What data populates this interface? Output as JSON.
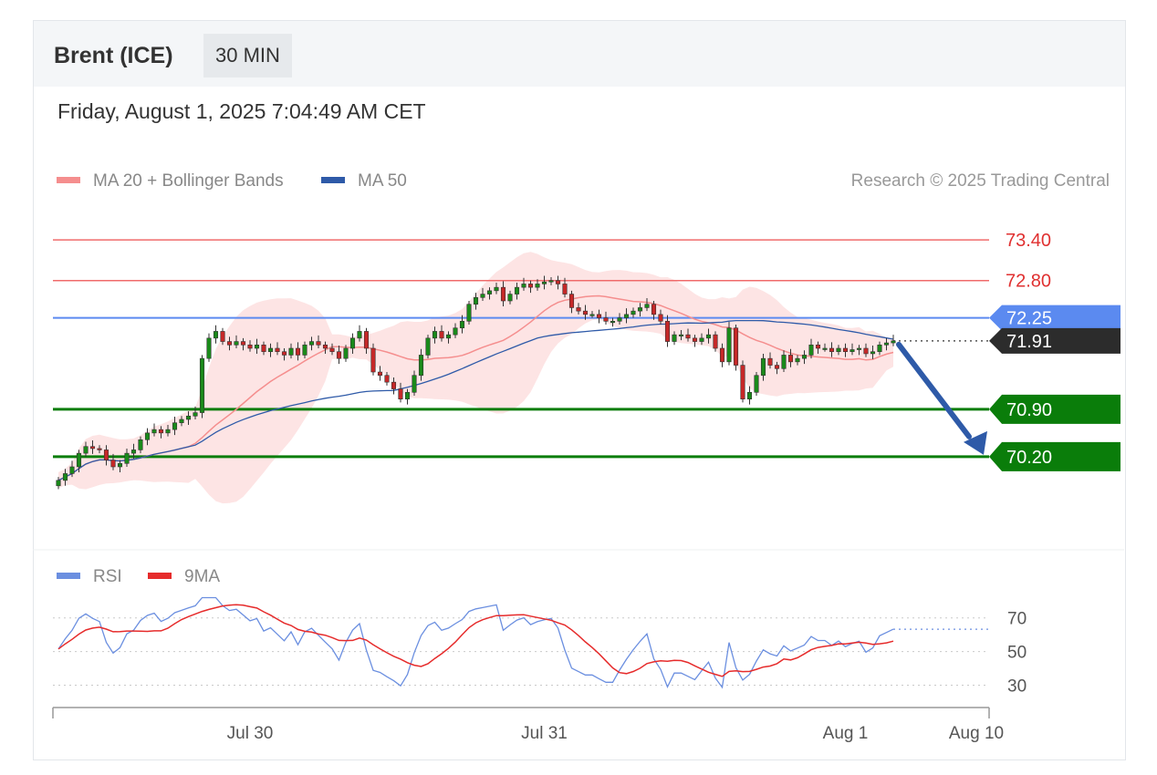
{
  "header": {
    "instrument": "Brent (ICE)",
    "timeframe": "30 MIN",
    "datetime": "Friday, August 1, 2025 7:04:49 AM CET"
  },
  "colors": {
    "ma20": "#f58e8e",
    "bollinger_fill": "#fde1e1",
    "ma50": "#2e5aa8",
    "resistance": "#f06b6b",
    "pivot": "#5b8af0",
    "support": "#0a7d0a",
    "current": "#2c2c2c",
    "rsi": "#6b8fe0",
    "rsi_ma": "#e62b2b",
    "bull_candle": "#1a8a1a",
    "bear_candle": "#c62828",
    "arrow": "#2e5aa8"
  },
  "chart_data": [
    {
      "type": "line",
      "name": "price",
      "legend": [
        {
          "label": "MA 20 + Bollinger Bands",
          "color": "#f58e8e"
        },
        {
          "label": "MA 50",
          "color": "#2e5aa8"
        }
      ],
      "credit": "Research © 2025 Trading Central",
      "ylim": [
        69.0,
        73.9
      ],
      "xlim": [
        0,
        136
      ],
      "x_ticks": [
        {
          "x": 28,
          "label": "Jul 30"
        },
        {
          "x": 71,
          "label": "Jul 31"
        },
        {
          "x": 115,
          "label": "Aug 1"
        },
        {
          "x": 134,
          "label": "Aug 10"
        }
      ],
      "levels": [
        {
          "value": 73.4,
          "label": "73.40",
          "kind": "resistance"
        },
        {
          "value": 72.8,
          "label": "72.80",
          "kind": "resistance"
        },
        {
          "value": 72.25,
          "label": "72.25",
          "kind": "pivot"
        },
        {
          "value": 71.91,
          "label": "71.91",
          "kind": "current"
        },
        {
          "value": 70.9,
          "label": "70.90",
          "kind": "support"
        },
        {
          "value": 70.2,
          "label": "70.20",
          "kind": "support"
        }
      ],
      "close": [
        69.85,
        69.95,
        70.05,
        70.25,
        70.35,
        70.32,
        70.3,
        70.15,
        70.05,
        70.1,
        70.25,
        70.3,
        70.45,
        70.55,
        70.6,
        70.55,
        70.6,
        70.7,
        70.75,
        70.8,
        70.85,
        71.65,
        71.95,
        72.05,
        71.9,
        71.85,
        71.9,
        71.85,
        71.8,
        71.85,
        71.75,
        71.8,
        71.75,
        71.7,
        71.8,
        71.7,
        71.85,
        71.9,
        71.85,
        71.8,
        71.75,
        71.65,
        71.8,
        71.95,
        72.05,
        71.8,
        71.45,
        71.4,
        71.3,
        71.2,
        71.05,
        71.15,
        71.4,
        71.7,
        71.95,
        72.05,
        71.95,
        72.0,
        72.1,
        72.2,
        72.45,
        72.55,
        72.6,
        72.65,
        72.7,
        72.5,
        72.6,
        72.7,
        72.75,
        72.7,
        72.75,
        72.78,
        72.8,
        72.75,
        72.6,
        72.4,
        72.35,
        72.3,
        72.3,
        72.25,
        72.2,
        72.2,
        72.25,
        72.3,
        72.35,
        72.4,
        72.45,
        72.3,
        72.2,
        71.9,
        72.0,
        72.0,
        71.95,
        71.9,
        71.95,
        72.0,
        71.8,
        71.6,
        72.1,
        71.55,
        71.05,
        71.15,
        71.4,
        71.65,
        71.55,
        71.5,
        71.7,
        71.6,
        71.65,
        71.7,
        71.85,
        71.8,
        71.8,
        71.75,
        71.8,
        71.75,
        71.78,
        71.8,
        71.72,
        71.75,
        71.85,
        71.88,
        71.91
      ]
    },
    {
      "type": "line",
      "name": "rsi",
      "legend": [
        {
          "label": "RSI",
          "color": "#6b8fe0"
        },
        {
          "label": "9MA",
          "color": "#e62b2b"
        }
      ],
      "ylim": [
        20,
        85
      ],
      "x_ticks": [
        {
          "x": 28,
          "label": "Jul 30"
        },
        {
          "x": 71,
          "label": "Jul 31"
        },
        {
          "x": 115,
          "label": "Aug 1"
        },
        {
          "x": 134,
          "label": "Aug 10"
        }
      ],
      "y_ticks": [
        {
          "value": 70,
          "label": "70"
        },
        {
          "value": 50,
          "label": "50"
        },
        {
          "value": 30,
          "label": "30"
        }
      ]
    }
  ]
}
